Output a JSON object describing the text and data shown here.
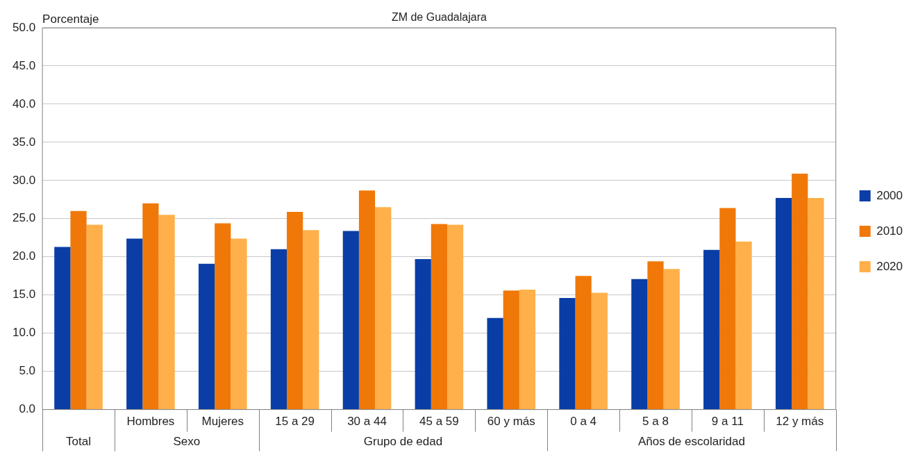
{
  "chart_data": {
    "type": "bar",
    "title": "ZM de Guadalajara",
    "ylabel": "Porcentaje",
    "categories": [
      null,
      "Hombres",
      "Mujeres",
      "15 a 29",
      "30 a 44",
      "45 a 59",
      "60 y más",
      "0 a 4",
      "5 a 8",
      "9 a 11",
      "12 y más"
    ],
    "series": [
      {
        "name": "2000",
        "color": "#0a3ea6",
        "values": [
          21.3,
          22.4,
          19.1,
          21.0,
          23.4,
          19.7,
          12.0,
          14.6,
          17.1,
          20.9,
          27.7
        ]
      },
      {
        "name": "2010",
        "color": "#f07808",
        "values": [
          26.0,
          27.0,
          24.4,
          25.9,
          28.7,
          24.3,
          15.6,
          17.5,
          19.4,
          26.4,
          30.9
        ]
      },
      {
        "name": "2020",
        "color": "#ffb04a",
        "values": [
          24.2,
          25.5,
          22.4,
          23.5,
          26.5,
          24.2,
          15.7,
          15.3,
          18.4,
          22.0,
          27.7
        ]
      }
    ],
    "annotations": [
      "Total",
      "Sexo",
      "Grupo de edad",
      "Años de escolaridad"
    ],
    "ylim": [
      0,
      50
    ],
    "yticks": [
      {
        "value": 0,
        "label": "0.0"
      },
      {
        "value": 5,
        "label": "5.0"
      },
      {
        "value": 10,
        "label": "10.0"
      },
      {
        "value": 15,
        "label": "15.0"
      },
      {
        "value": 20,
        "label": "20.0"
      },
      {
        "value": 25,
        "label": "25.0"
      },
      {
        "value": 30,
        "label": "30.0"
      },
      {
        "value": 35,
        "label": "35.0"
      },
      {
        "value": 40,
        "label": "40.0"
      },
      {
        "value": 45,
        "label": "45.0"
      },
      {
        "value": 50,
        "label": "50.0"
      }
    ],
    "grid": "y",
    "legend": "right"
  }
}
